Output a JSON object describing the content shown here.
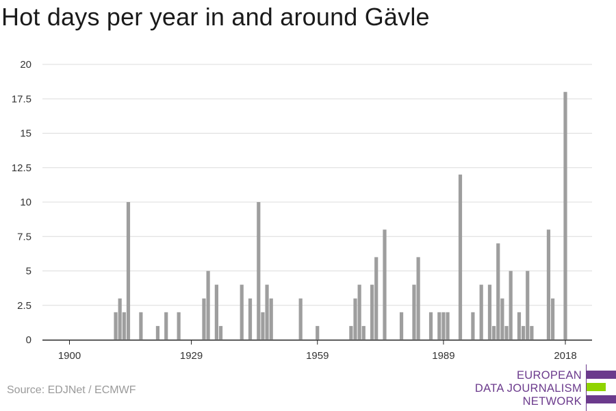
{
  "title": "Hot days per year in and around Gävle",
  "source": "Source: EDJNet / ECMWF",
  "logo": {
    "line1": "EUROPEAN",
    "line2": "DATA JOURNALISM",
    "line3": "NETWORK"
  },
  "colors": {
    "bar": "#9e9e9e",
    "grid": "#dcdcdc",
    "axis": "#222222",
    "logo_purple": "#6b3a8c",
    "logo_green": "#8fd400"
  },
  "chart_data": {
    "type": "bar",
    "title": "Hot days per year in and around Gävle",
    "xlabel": "",
    "ylabel": "",
    "ylim": [
      0,
      20
    ],
    "yticks": [
      0,
      2.5,
      5,
      7.5,
      10,
      12.5,
      15,
      17.5,
      20
    ],
    "ytick_labels": [
      "0",
      "2.5",
      "5",
      "7.5",
      "10",
      "12.5",
      "15",
      "17.5",
      "20"
    ],
    "xticks": [
      1900,
      1929,
      1959,
      1989,
      2018
    ],
    "xtick_labels": [
      "1900",
      "1929",
      "1959",
      "1989",
      "2018"
    ],
    "grid": true,
    "x": [
      1911,
      1912,
      1913,
      1914,
      1917,
      1921,
      1923,
      1926,
      1932,
      1933,
      1935,
      1936,
      1941,
      1943,
      1945,
      1946,
      1947,
      1948,
      1955,
      1959,
      1967,
      1968,
      1969,
      1970,
      1972,
      1973,
      1975,
      1979,
      1982,
      1983,
      1986,
      1988,
      1989,
      1990,
      1993,
      1996,
      1998,
      2000,
      2001,
      2002,
      2003,
      2004,
      2005,
      2007,
      2008,
      2009,
      2010,
      2014,
      2015,
      2018
    ],
    "values": [
      2,
      3,
      2,
      10,
      2,
      1,
      2,
      2,
      3,
      5,
      4,
      1,
      4,
      3,
      10,
      2,
      4,
      3,
      3,
      1,
      1,
      3,
      4,
      1,
      4,
      6,
      8,
      2,
      4,
      6,
      2,
      2,
      2,
      2,
      12,
      2,
      4,
      4,
      1,
      7,
      3,
      1,
      5,
      2,
      1,
      5,
      1,
      8,
      3,
      18
    ]
  }
}
